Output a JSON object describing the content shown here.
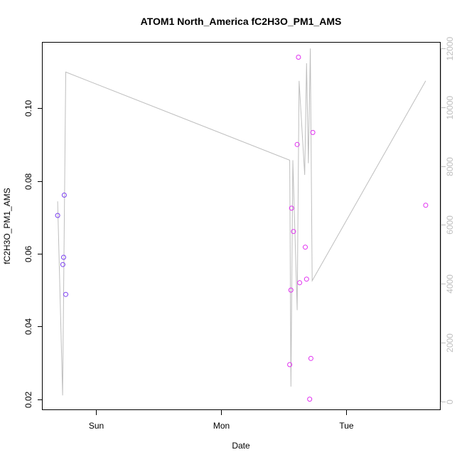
{
  "chart_data": {
    "type": "scatter",
    "title": "ATOM1 North_America fC2H3O_PM1_AMS",
    "xlabel": "Date",
    "ylabel": "fC2H3O_PM1_AMS",
    "x_unit": "days",
    "xlim": [
      -0.43,
      2.76
    ],
    "ylim": [
      0.017,
      0.118
    ],
    "x_ticks": [
      {
        "value": 0,
        "label": "Sun"
      },
      {
        "value": 1,
        "label": "Mon"
      },
      {
        "value": 2,
        "label": "Tue"
      }
    ],
    "y_ticks": [
      {
        "value": 0.02,
        "label": "0.02"
      },
      {
        "value": 0.04,
        "label": "0.04"
      },
      {
        "value": 0.06,
        "label": "0.06"
      },
      {
        "value": 0.08,
        "label": "0.08"
      },
      {
        "value": 0.1,
        "label": "0.10"
      }
    ],
    "y2lim": [
      -300,
      12200
    ],
    "y2_ticks": [
      {
        "value": 0,
        "label": "0"
      },
      {
        "value": 2000,
        "label": "2000"
      },
      {
        "value": 4000,
        "label": "4000"
      },
      {
        "value": 6000,
        "label": "6000"
      },
      {
        "value": 8000,
        "label": "8000"
      },
      {
        "value": 10000,
        "label": "10000"
      },
      {
        "value": 12000,
        "label": "12000"
      }
    ],
    "points": [
      {
        "x": -0.31,
        "y": 0.0705,
        "color": "#7b3ff2"
      },
      {
        "x": -0.268,
        "y": 0.057,
        "color": "#7b3ff2"
      },
      {
        "x": -0.262,
        "y": 0.059,
        "color": "#7b3ff2"
      },
      {
        "x": -0.257,
        "y": 0.0761,
        "color": "#7b3ff2"
      },
      {
        "x": -0.245,
        "y": 0.0488,
        "color": "#7b3ff2"
      },
      {
        "x": 1.55,
        "y": 0.0295,
        "color": "#e030f0"
      },
      {
        "x": 1.56,
        "y": 0.05,
        "color": "#e030f0"
      },
      {
        "x": 1.565,
        "y": 0.0725,
        "color": "#e030f0"
      },
      {
        "x": 1.58,
        "y": 0.0661,
        "color": "#e030f0"
      },
      {
        "x": 1.61,
        "y": 0.09,
        "color": "#e030f0"
      },
      {
        "x": 1.62,
        "y": 0.114,
        "color": "#e030f0"
      },
      {
        "x": 1.63,
        "y": 0.052,
        "color": "#e030f0"
      },
      {
        "x": 1.675,
        "y": 0.0618,
        "color": "#e030f0"
      },
      {
        "x": 1.685,
        "y": 0.053,
        "color": "#e030f0"
      },
      {
        "x": 1.71,
        "y": 0.02,
        "color": "#e030f0"
      },
      {
        "x": 1.72,
        "y": 0.0312,
        "color": "#e030f0"
      },
      {
        "x": 1.735,
        "y": 0.0933,
        "color": "#e030f0"
      },
      {
        "x": 2.64,
        "y": 0.0733,
        "color": "#e030f0"
      }
    ],
    "secondary_line": {
      "axis": "right",
      "color": "#bebebe",
      "points": [
        {
          "x": -0.31,
          "y": 6800
        },
        {
          "x": -0.27,
          "y": 200
        },
        {
          "x": -0.245,
          "y": 11200
        },
        {
          "x": 1.55,
          "y": 8200
        },
        {
          "x": 1.56,
          "y": 500
        },
        {
          "x": 1.575,
          "y": 8200
        },
        {
          "x": 1.61,
          "y": 3100
        },
        {
          "x": 1.625,
          "y": 10900
        },
        {
          "x": 1.67,
          "y": 7700
        },
        {
          "x": 1.685,
          "y": 11500
        },
        {
          "x": 1.7,
          "y": 8100
        },
        {
          "x": 1.715,
          "y": 12000
        },
        {
          "x": 1.73,
          "y": 4100
        },
        {
          "x": 2.64,
          "y": 10900
        }
      ]
    },
    "grid": false,
    "legend": "none"
  }
}
